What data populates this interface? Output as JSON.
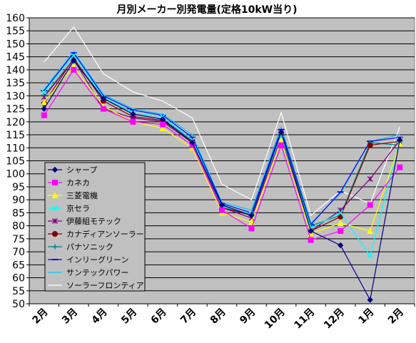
{
  "chart_data": {
    "type": "line",
    "title": "月別メーカー別発電量(定格10kW当り)",
    "categories": [
      "2月",
      "3月",
      "4月",
      "5月",
      "6月",
      "7月",
      "8月",
      "9月",
      "10月",
      "11月",
      "12月",
      "1月",
      "2月"
    ],
    "ylim": [
      50,
      160
    ],
    "yticks": [
      50,
      55,
      60,
      65,
      70,
      75,
      80,
      85,
      90,
      95,
      100,
      105,
      110,
      115,
      120,
      125,
      130,
      135,
      140,
      145,
      150,
      155,
      160
    ],
    "grid": true,
    "plot_background": "#c0c0c0",
    "legend_position": "lower-left inside plot",
    "series": [
      {
        "name": "シャープ",
        "color": "#000080",
        "marker": "diamond",
        "values": [
          125,
          143.5,
          129,
          123,
          121,
          112,
          88,
          84,
          116,
          78,
          72.5,
          51.5,
          113
        ]
      },
      {
        "name": "カネカ",
        "color": "#ff00ff",
        "marker": "square",
        "values": [
          122.5,
          140,
          125,
          120,
          119,
          111,
          86,
          79,
          111,
          74.5,
          78,
          88,
          102.5
        ]
      },
      {
        "name": "三菱電機",
        "color": "#ffff00",
        "marker": "triangle",
        "values": [
          127.5,
          141.5,
          126,
          120,
          117.5,
          110,
          85,
          81.5,
          113,
          77,
          81,
          78,
          111.5
        ]
      },
      {
        "name": "京セラ",
        "color": "#00ffff",
        "marker": "x",
        "values": [
          131.5,
          145.5,
          129.5,
          123.5,
          122,
          113,
          87.5,
          84.5,
          115,
          79,
          85,
          68.5,
          113
        ]
      },
      {
        "name": "伊藤組モテック",
        "color": "#800080",
        "marker": "star",
        "values": [
          129.5,
          144,
          125,
          121.5,
          120,
          112,
          87,
          83,
          114,
          78,
          86,
          98,
          113
        ]
      },
      {
        "name": "カナディアンソーラー",
        "color": "#800000",
        "marker": "circle",
        "values": [
          127,
          144.5,
          128,
          122,
          120.5,
          112.5,
          87,
          84,
          115.5,
          78,
          83.5,
          111,
          112.5
        ]
      },
      {
        "name": "パナソニック",
        "color": "#008080",
        "marker": "plus",
        "values": [
          130,
          144,
          129,
          123,
          121,
          113,
          87.5,
          84,
          115,
          80,
          84,
          112,
          111
        ]
      },
      {
        "name": "インリーグリーン",
        "color": "#0000ff",
        "marker": "dash",
        "values": [
          132,
          146.5,
          130,
          124.5,
          122.5,
          114,
          88.5,
          85,
          117,
          80.5,
          93,
          112.5,
          114
        ]
      },
      {
        "name": "サンテックパワー",
        "color": "#00ccff",
        "marker": "none",
        "values": [
          132.5,
          147,
          130.5,
          125,
          123,
          115,
          89,
          86,
          118,
          81,
          92.5,
          112.5,
          115
        ]
      },
      {
        "name": "ソーラーフロンティア",
        "color": "#ffffff",
        "marker": "none",
        "values": [
          143,
          156.5,
          138.5,
          131.5,
          128,
          121.5,
          96,
          90,
          123.5,
          84,
          93.5,
          88.5,
          118
        ]
      }
    ]
  }
}
